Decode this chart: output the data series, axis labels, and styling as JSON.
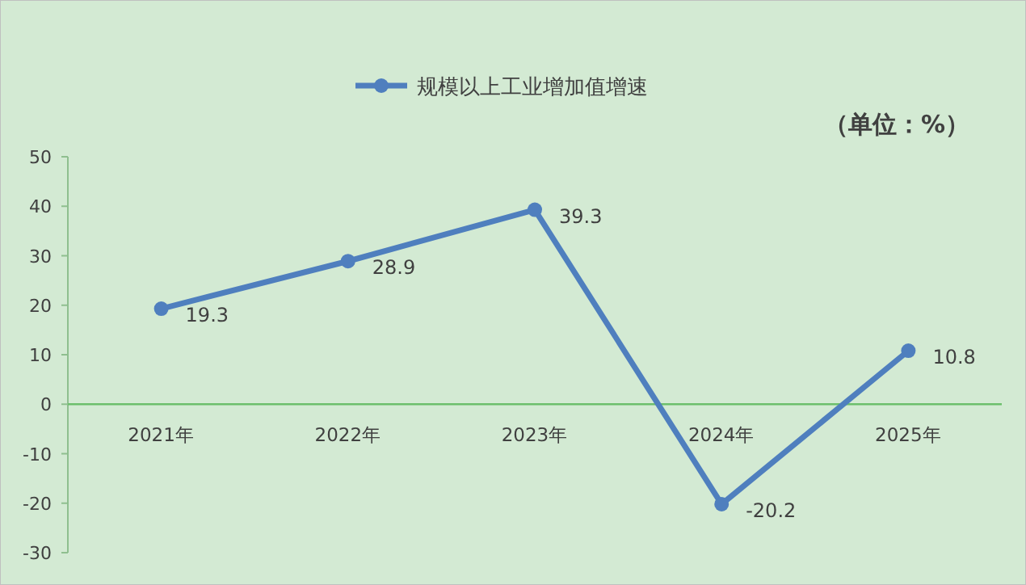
{
  "chart_data": {
    "type": "line",
    "categories": [
      "2021年",
      "2022年",
      "2023年",
      "2024年",
      "2025年"
    ],
    "series": [
      {
        "name": "规模以上工业增加值增速",
        "color": "#4f7fbe",
        "values": [
          19.3,
          28.9,
          39.3,
          -20.2,
          10.8
        ]
      }
    ],
    "ylim": [
      -30,
      50
    ],
    "yticks": [
      -30,
      -20,
      -10,
      0,
      10,
      20,
      30,
      40,
      50
    ],
    "annotations": [
      "（单位：%）"
    ],
    "data_labels": true,
    "legend": "top",
    "marker": "circle",
    "grid": false
  }
}
